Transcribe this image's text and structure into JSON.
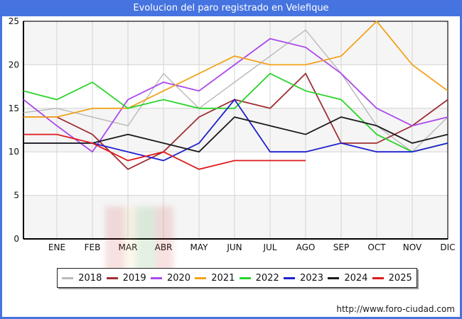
{
  "window": {
    "title": "Evolucion del paro registrado en Velefique"
  },
  "footer": {
    "url_text": "http://www.foro-ciudad.com"
  },
  "chart_data": {
    "type": "line",
    "title": "Evolucion del paro registrado en Velefique",
    "x_categories": [
      "ENE",
      "FEB",
      "MAR",
      "ABR",
      "MAY",
      "JUN",
      "JUL",
      "AGO",
      "SEP",
      "OCT",
      "NOV",
      "DIC"
    ],
    "y_ticks": [
      0,
      5,
      10,
      15,
      20,
      25
    ],
    "ylim": [
      0,
      25
    ],
    "grid": true,
    "legend_position": "bottom",
    "note": "each line starts at the y-axis with a lead-in value (axis_start) before ENE; 2025 data ends at AGO",
    "series": [
      {
        "name": "2018",
        "color": "#b9b9b9",
        "axis_start": 14.5,
        "values": [
          15,
          14,
          13,
          19,
          15,
          18,
          21,
          24,
          19,
          13,
          10,
          14
        ]
      },
      {
        "name": "2019",
        "color": "#9e2f34",
        "axis_start": 14,
        "values": [
          14,
          12,
          8,
          10,
          14,
          16,
          15,
          19,
          11,
          11,
          13,
          16
        ]
      },
      {
        "name": "2020",
        "color": "#ab49ea",
        "axis_start": 16,
        "values": [
          13,
          10,
          16,
          18,
          17,
          20,
          23,
          22,
          19,
          15,
          13,
          14
        ]
      },
      {
        "name": "2021",
        "color": "#f2a31b",
        "axis_start": 14,
        "values": [
          14,
          15,
          15,
          17,
          19,
          21,
          20,
          20,
          21,
          25,
          20,
          17
        ]
      },
      {
        "name": "2022",
        "color": "#2bd42b",
        "axis_start": 17,
        "values": [
          16,
          18,
          15,
          16,
          15,
          15,
          19,
          17,
          16,
          12,
          10,
          11
        ]
      },
      {
        "name": "2023",
        "color": "#1f1fd0",
        "axis_start": 11,
        "values": [
          11,
          11,
          10,
          9,
          11,
          16,
          10,
          10,
          11,
          10,
          10,
          11
        ]
      },
      {
        "name": "2024",
        "color": "#1b1b1b",
        "axis_start": 11,
        "values": [
          11,
          11,
          12,
          11,
          10,
          14,
          13,
          12,
          14,
          13,
          11,
          12
        ]
      },
      {
        "name": "2025",
        "color": "#de1a1a",
        "axis_start": 12,
        "values": [
          12,
          11,
          9,
          10,
          8,
          9,
          9,
          9,
          null,
          null,
          null,
          null
        ]
      }
    ]
  }
}
